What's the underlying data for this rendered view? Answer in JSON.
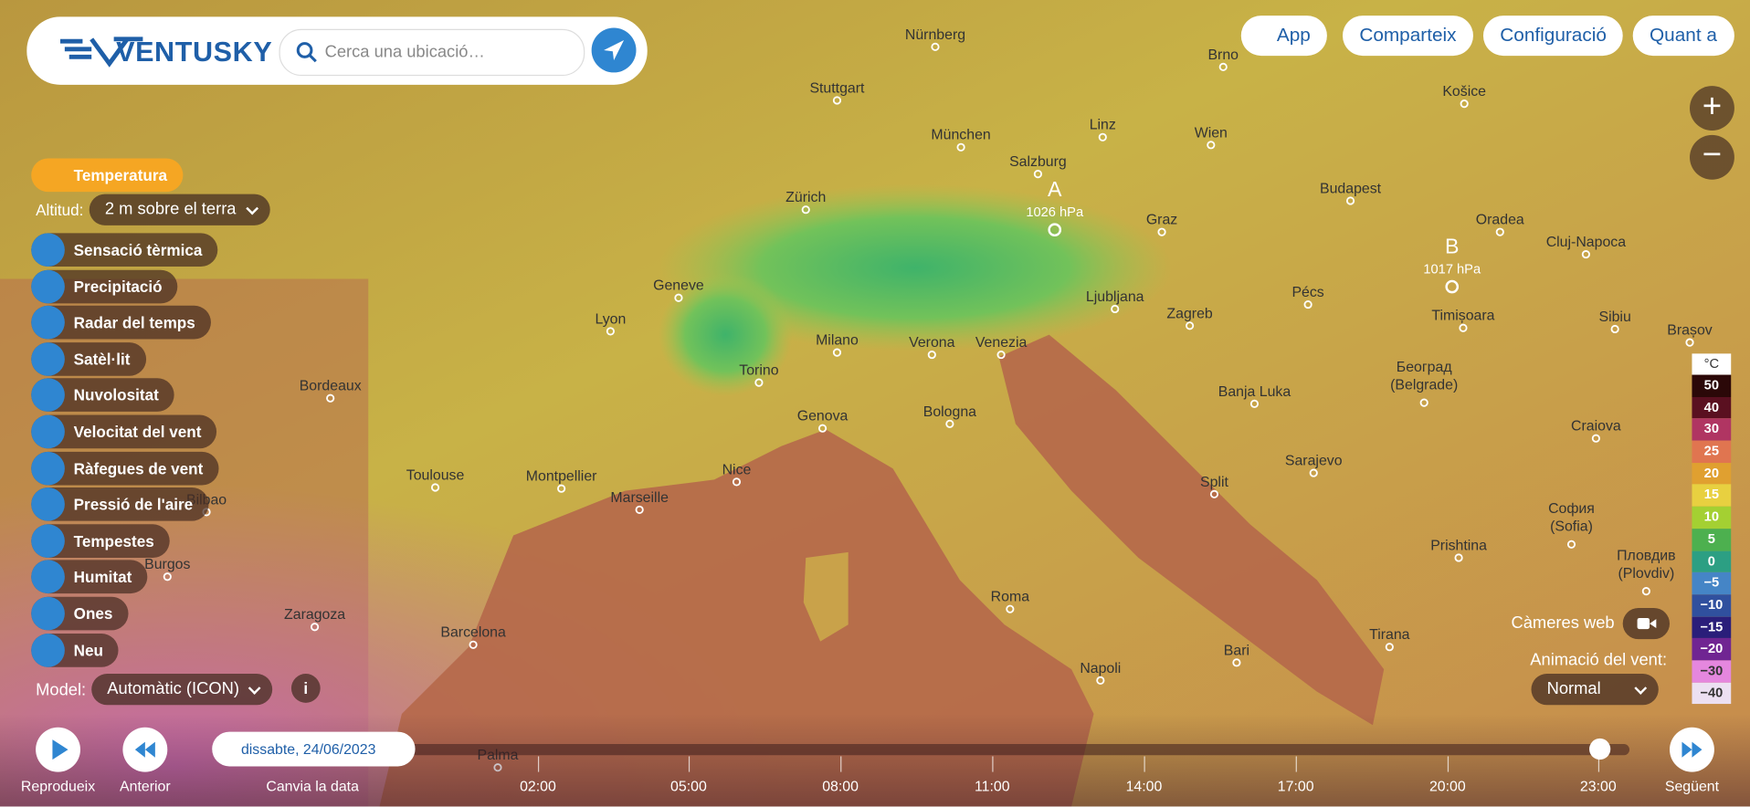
{
  "header": {
    "logo": "VENTUSKY",
    "search_placeholder": "Cerca una ubicació…"
  },
  "top_menu": [
    "App",
    "Comparteix",
    "Configuració",
    "Quant a"
  ],
  "layers": {
    "active": "Temperatura",
    "altitude_label": "Altitud:",
    "altitude_value": "2 m sobre el terra",
    "items": [
      "Sensació tèrmica",
      "Precipitació",
      "Radar del temps",
      "Satèl·lit",
      "Nuvolositat",
      "Velocitat del vent",
      "Ràfegues de vent",
      "Pressió de l'aire",
      "Tempestes",
      "Humitat",
      "Ones",
      "Neu"
    ],
    "model_label": "Model:",
    "model_value": "Automàtic (ICON)"
  },
  "pressure": [
    {
      "letter": "A",
      "value": "1026 hPa"
    },
    {
      "letter": "B",
      "value": "1017 hPa"
    }
  ],
  "cities": [
    "Nürnberg",
    "Stuttgart",
    "Brno",
    "Košice",
    "München",
    "Linz",
    "Wien",
    "Salzburg",
    "Zürich",
    "Budapest",
    "Graz",
    "Oradea",
    "Cluj-Napoca",
    "Geneve",
    "Ljubljana",
    "Zagreb",
    "Pécs",
    "Timișoara",
    "Sibiu",
    "Brașov",
    "Lyon",
    "Milano",
    "Verona",
    "Venezia",
    "Torino",
    "Bordeaux",
    "Београд (Belgrade)",
    "Banja Luka",
    "Craiova",
    "Genova",
    "Bologna",
    "Sarajevo",
    "Toulouse",
    "Montpellier",
    "Nice",
    "Marseille",
    "Split",
    "Bilbao",
    "София (Sofia)",
    "Prishtina",
    "Пловдив (Plovdiv)",
    "Burgos",
    "Roma",
    "Zaragoza",
    "Barcelona",
    "Tirana",
    "Bari",
    "Napoli",
    "Palma"
  ],
  "legend": {
    "unit": "°C",
    "labels": [
      "50",
      "40",
      "30",
      "25",
      "20",
      "15",
      "10",
      "5",
      "0",
      "−5",
      "−10",
      "−15",
      "−20",
      "−30",
      "−40"
    ]
  },
  "webcams": "Càmeres web",
  "wind_animation": {
    "label": "Animació del vent:",
    "value": "Normal"
  },
  "timeline": {
    "date": "dissabte, 24/06/2023",
    "change_date": "Canvia la data",
    "play": "Reprodueix",
    "previous": "Anterior",
    "next": "Següent",
    "times": [
      "02:00",
      "05:00",
      "08:00",
      "11:00",
      "14:00",
      "17:00",
      "20:00",
      "23:00"
    ]
  }
}
